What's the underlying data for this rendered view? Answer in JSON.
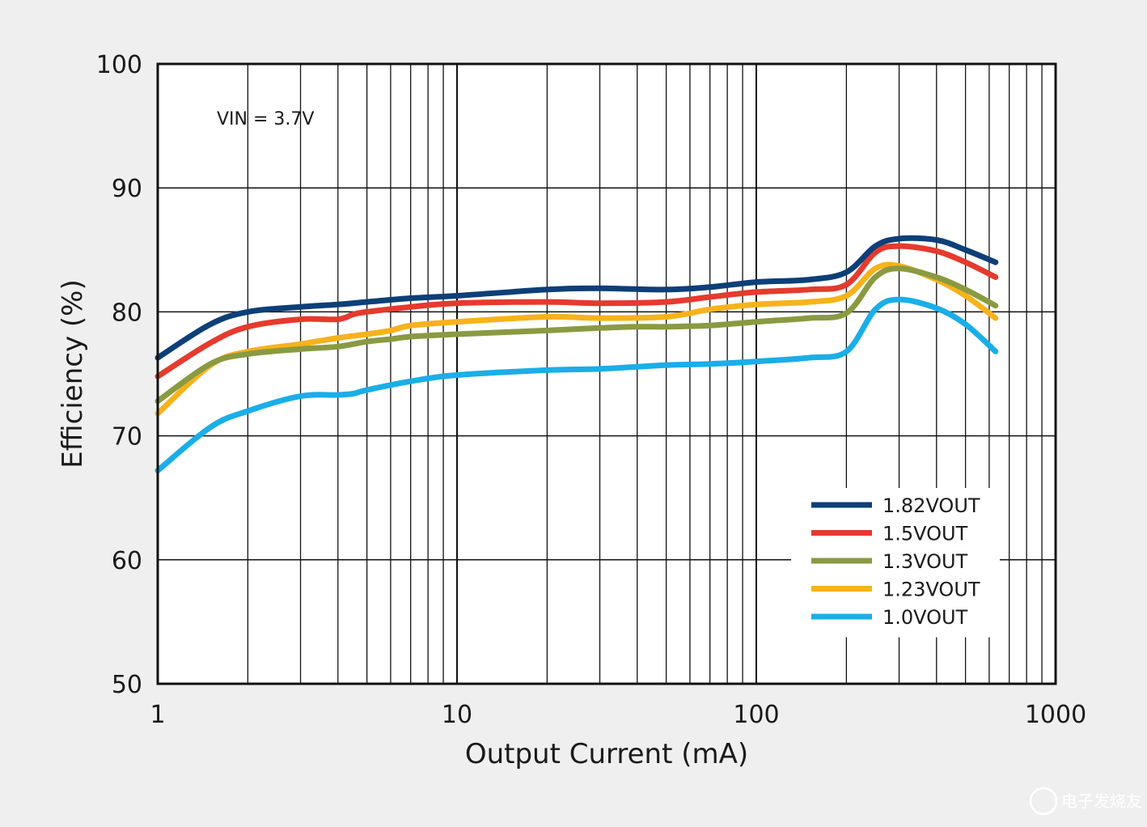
{
  "chart_data": {
    "type": "line",
    "title": "",
    "xlabel": "Output Current (mA)",
    "ylabel": "Efficiency (%)",
    "xscale": "log",
    "xlim": [
      1,
      1000
    ],
    "ylim": [
      50,
      100
    ],
    "xticks": [
      1,
      10,
      100,
      1000
    ],
    "xtick_labels": [
      "1",
      "10",
      "100",
      "1000"
    ],
    "yticks": [
      50,
      60,
      70,
      80,
      90,
      100
    ],
    "ytick_labels": [
      "50",
      "60",
      "70",
      "80",
      "90",
      "100"
    ],
    "grid": true,
    "legend_position": "bottom-right",
    "annotation": "VIN = 3.7V",
    "series": [
      {
        "name": "1.82VOUT",
        "color": "#0d3f78",
        "x": [
          1,
          1.5,
          2,
          3,
          4,
          5,
          7,
          10,
          20,
          30,
          50,
          70,
          100,
          150,
          200,
          250,
          300,
          400,
          500,
          630
        ],
        "y": [
          76.3,
          79.0,
          80.0,
          80.4,
          80.6,
          80.8,
          81.1,
          81.3,
          81.8,
          81.9,
          81.8,
          82.0,
          82.4,
          82.6,
          83.2,
          85.3,
          85.9,
          85.8,
          85.0,
          84.0
        ]
      },
      {
        "name": "1.5VOUT",
        "color": "#e63a2e",
        "x": [
          1,
          1.5,
          2,
          3,
          4,
          4.5,
          5,
          7,
          10,
          20,
          30,
          50,
          70,
          100,
          150,
          200,
          250,
          300,
          400,
          500,
          630
        ],
        "y": [
          74.8,
          77.5,
          78.8,
          79.4,
          79.4,
          79.8,
          80.0,
          80.4,
          80.7,
          80.8,
          80.7,
          80.8,
          81.2,
          81.6,
          81.8,
          82.2,
          84.8,
          85.3,
          84.9,
          84.0,
          82.8
        ]
      },
      {
        "name": "1.3VOUT",
        "color": "#8a9a41",
        "x": [
          1,
          1.5,
          2,
          3,
          4,
          5,
          6,
          7,
          10,
          20,
          30,
          40,
          50,
          70,
          100,
          150,
          200,
          250,
          300,
          400,
          500,
          630
        ],
        "y": [
          72.8,
          75.8,
          76.6,
          77.0,
          77.2,
          77.6,
          77.8,
          78.0,
          78.2,
          78.5,
          78.7,
          78.8,
          78.8,
          78.9,
          79.2,
          79.5,
          79.9,
          82.8,
          83.5,
          82.8,
          81.8,
          80.5
        ]
      },
      {
        "name": "1.23VOUT",
        "color": "#f7b21c",
        "x": [
          1,
          1.5,
          2,
          3,
          4,
          5,
          6,
          7,
          10,
          20,
          30,
          50,
          70,
          100,
          150,
          200,
          250,
          300,
          400,
          500,
          630
        ],
        "y": [
          71.8,
          75.7,
          76.8,
          77.4,
          77.9,
          78.2,
          78.5,
          78.9,
          79.2,
          79.6,
          79.5,
          79.6,
          80.2,
          80.6,
          80.8,
          81.3,
          83.5,
          83.7,
          82.6,
          81.3,
          79.5
        ]
      },
      {
        "name": "1.0VOUT",
        "color": "#1aaee8",
        "x": [
          1,
          1.5,
          2,
          3,
          4,
          4.5,
          5,
          7,
          10,
          20,
          30,
          50,
          70,
          100,
          150,
          200,
          250,
          300,
          400,
          500,
          630
        ],
        "y": [
          67.2,
          70.7,
          72.0,
          73.2,
          73.3,
          73.4,
          73.7,
          74.4,
          74.9,
          75.3,
          75.4,
          75.7,
          75.8,
          76.0,
          76.3,
          76.8,
          80.2,
          81.0,
          80.3,
          79.0,
          76.8
        ]
      }
    ]
  },
  "watermark": "电子发烧友"
}
